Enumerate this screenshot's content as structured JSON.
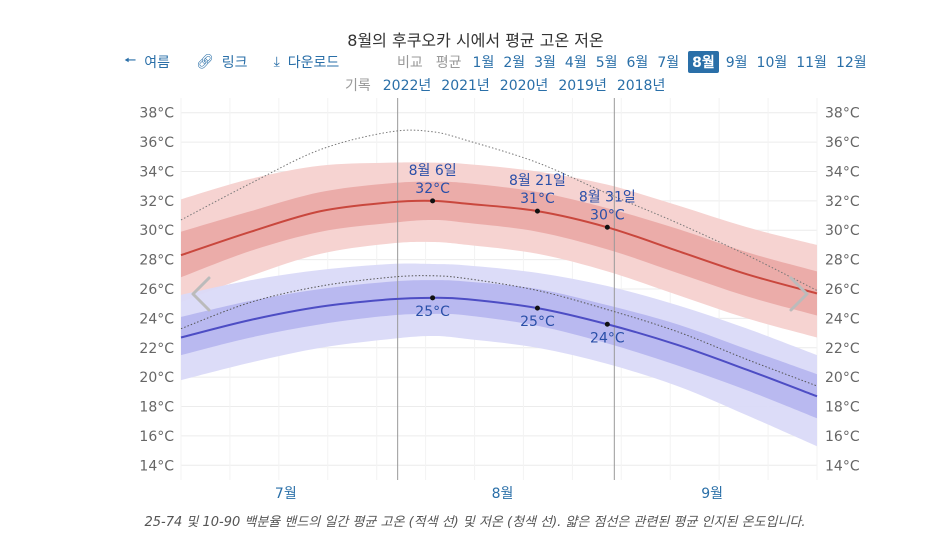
{
  "title": "8월의 후쿠오카 시에서 평균 고온 저온",
  "nav": {
    "prev_label": "여름",
    "link_label": "링크",
    "download_label": "다운로드",
    "compare_label": "비교",
    "average_label": "평균",
    "months": [
      "1월",
      "2월",
      "3월",
      "4월",
      "5월",
      "6월",
      "7월",
      "8월",
      "9월",
      "10월",
      "11월",
      "12월"
    ],
    "selected_month": "8월",
    "record_label": "기록",
    "years": [
      "2022년",
      "2021년",
      "2020년",
      "2019년",
      "2018년"
    ]
  },
  "icons": {
    "prev": "arrow-left-icon",
    "link": "link-icon",
    "download": "download-icon",
    "carousel_prev": "chevron-left-icon",
    "carousel_next": "chevron-right-icon"
  },
  "colors": {
    "high_line": "#c9473d",
    "high_band_inner": "#e9a5a2",
    "high_band_outer": "#f6d3d1",
    "low_line": "#4d4dc4",
    "low_band_inner": "#b3b3ee",
    "low_band_outer": "#dadaf8",
    "link": "#2a6fa8"
  },
  "chart_data": {
    "type": "area",
    "y_unit": "°C",
    "ylim": [
      13,
      39
    ],
    "y_ticks": [
      "14°C",
      "16°C",
      "18°C",
      "20°C",
      "22°C",
      "24°C",
      "26°C",
      "28°C",
      "30°C",
      "32°C",
      "34°C",
      "36°C",
      "38°C"
    ],
    "x_axis": {
      "start": "07-01",
      "end": "09-30"
    },
    "x_month_labels": [
      {
        "label": "7월",
        "date": "07-16"
      },
      {
        "label": "8월",
        "date": "08-16"
      },
      {
        "label": "9월",
        "date": "09-15"
      }
    ],
    "month_dividers": [
      "08-01",
      "09-01"
    ],
    "grid": true,
    "series": [
      {
        "name": "평균 고온",
        "dates": [
          "07-01",
          "07-11",
          "07-21",
          "07-31",
          "08-06",
          "08-11",
          "08-21",
          "08-31",
          "09-10",
          "09-20",
          "09-30"
        ],
        "mean": [
          28.3,
          29.9,
          31.3,
          31.9,
          32.0,
          31.8,
          31.3,
          30.2,
          28.6,
          27.0,
          25.7
        ],
        "p25": [
          26.8,
          28.6,
          29.9,
          30.5,
          30.7,
          30.5,
          29.9,
          28.7,
          27.1,
          25.5,
          24.2
        ],
        "p75": [
          29.9,
          31.3,
          32.6,
          33.2,
          33.3,
          33.2,
          32.6,
          31.5,
          30.1,
          28.5,
          27.2
        ],
        "p10": [
          25.1,
          26.9,
          28.4,
          29.1,
          29.2,
          29.0,
          28.4,
          27.2,
          25.6,
          24.0,
          22.7
        ],
        "p90": [
          32.1,
          33.5,
          34.4,
          34.6,
          34.6,
          34.5,
          34.0,
          33.1,
          31.7,
          30.2,
          29.0
        ],
        "recorded": [
          30.7,
          33.2,
          35.5,
          36.7,
          36.7,
          36.1,
          34.6,
          32.5,
          30.5,
          28.3,
          25.9
        ]
      },
      {
        "name": "평균 저온",
        "dates": [
          "07-01",
          "07-11",
          "07-21",
          "07-31",
          "08-06",
          "08-11",
          "08-21",
          "08-31",
          "09-10",
          "09-20",
          "09-30"
        ],
        "mean": [
          22.7,
          23.9,
          24.8,
          25.3,
          25.4,
          25.3,
          24.7,
          23.6,
          22.2,
          20.5,
          18.7
        ],
        "p25": [
          21.5,
          22.7,
          23.6,
          24.2,
          24.3,
          24.2,
          23.5,
          22.3,
          20.8,
          19.1,
          17.2
        ],
        "p75": [
          24.1,
          25.2,
          26.0,
          26.5,
          26.6,
          26.5,
          26.0,
          24.9,
          23.6,
          21.9,
          20.2
        ],
        "p10": [
          19.8,
          21.0,
          22.0,
          22.6,
          22.8,
          22.6,
          22.0,
          20.9,
          19.4,
          17.4,
          15.3
        ],
        "p90": [
          25.6,
          26.6,
          27.3,
          27.7,
          27.7,
          27.6,
          27.1,
          26.2,
          24.9,
          23.3,
          21.5
        ],
        "recorded": [
          23.3,
          25.1,
          26.2,
          26.8,
          26.9,
          26.7,
          25.9,
          24.6,
          23.1,
          21.2,
          19.4
        ]
      }
    ],
    "annotations": {
      "high": [
        {
          "date_label": "8월 6일",
          "value_label": "32°C",
          "date": "08-06",
          "value": 32.0
        },
        {
          "date_label": "8월 21일",
          "value_label": "31°C",
          "date": "08-21",
          "value": 31.3
        },
        {
          "date_label": "8월 31일",
          "value_label": "30°C",
          "date": "08-31",
          "value": 30.2
        }
      ],
      "low": [
        {
          "value_label": "25°C",
          "date": "08-06",
          "value": 25.4
        },
        {
          "value_label": "25°C",
          "date": "08-21",
          "value": 24.7
        },
        {
          "value_label": "24°C",
          "date": "08-31",
          "value": 23.6
        }
      ]
    }
  },
  "caption": "25-74 및 10-90 백분율 밴드의 일간 평균 고온 (적색 선) 및 저온 (청색 선). 얇은 점선은 관련된 평균 인지된 온도입니다."
}
